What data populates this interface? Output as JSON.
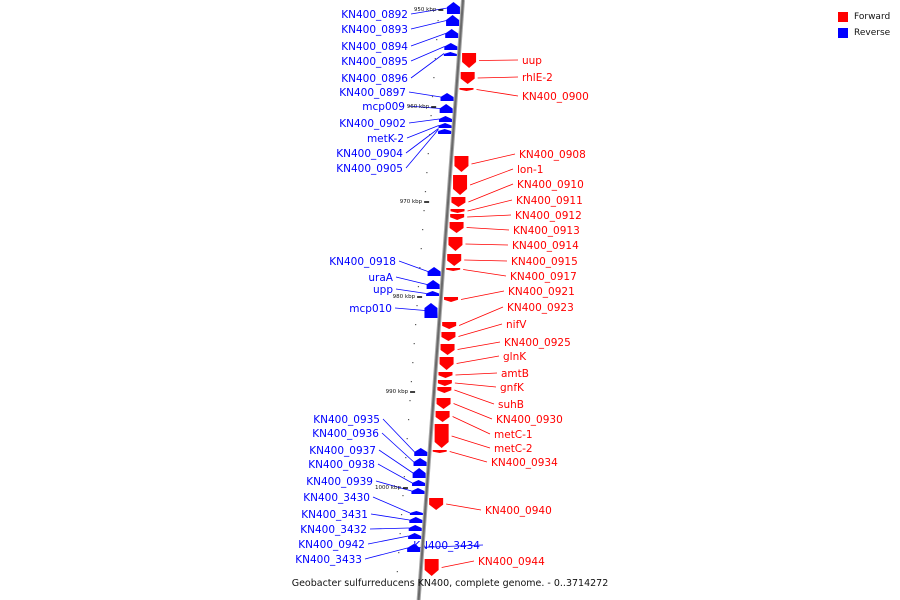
{
  "legend": {
    "forward": {
      "label": "Forward",
      "color": "#ff0000"
    },
    "reverse": {
      "label": "Reverse",
      "color": "#0000ff"
    }
  },
  "caption": "Geobacter sulfurreducens KN400, complete genome. - 0..3714272",
  "axis_ticks": [
    "950 kbp",
    "960 kbp",
    "970 kbp",
    "980 kbp",
    "990 kbp",
    "1000 kbp"
  ],
  "reverse_genes": [
    "KN400_0892",
    "KN400_0893",
    "KN400_0894",
    "KN400_0895",
    "KN400_0896",
    "KN400_0897",
    "mcp009",
    "KN400_0902",
    "metK-2",
    "KN400_0904",
    "KN400_0905",
    "KN400_0918",
    "uraA",
    "upp",
    "mcp010",
    "KN400_0935",
    "KN400_0936",
    "KN400_0937",
    "KN400_0938",
    "KN400_0939",
    "KN400_3430",
    "KN400_3431",
    "KN400_3432",
    "KN400_0942",
    "KN400_3433",
    "KN400_3434"
  ],
  "forward_genes": [
    "uup",
    "rhlE-2",
    "KN400_0900",
    "KN400_0908",
    "lon-1",
    "KN400_0910",
    "KN400_0911",
    "KN400_0912",
    "KN400_0913",
    "KN400_0914",
    "KN400_0915",
    "KN400_0917",
    "KN400_0921",
    "KN400_0923",
    "nifV",
    "KN400_0925",
    "glnK",
    "amtB",
    "gnfK",
    "suhB",
    "KN400_0930",
    "metC-1",
    "metC-2",
    "KN400_0934",
    "KN400_0940",
    "KN400_0944"
  ]
}
